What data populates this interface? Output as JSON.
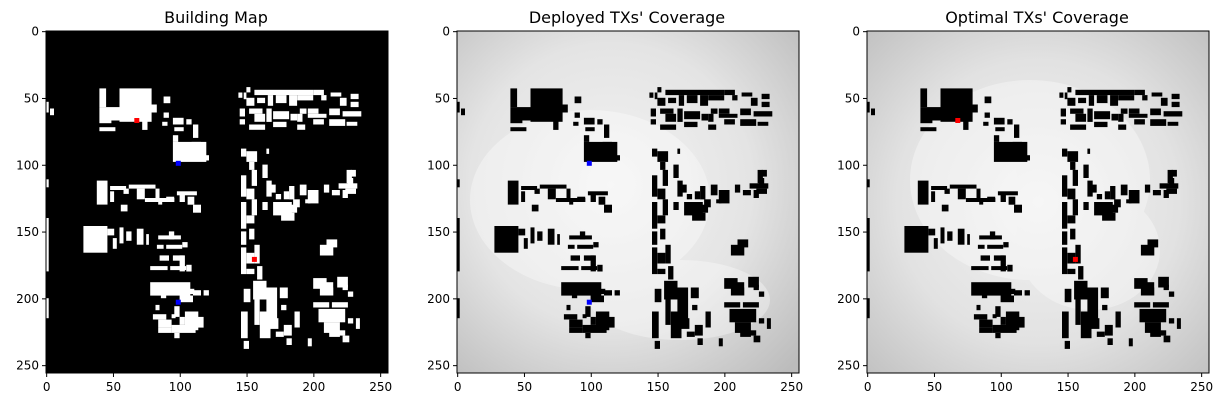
{
  "colors": {
    "building_white": "#ffffff",
    "background_black": "#000000",
    "tx_red": "#ff0000",
    "tx_blue": "#0000ff",
    "coverage_high": "#f3f3f3",
    "coverage_low": "#b8b8b8"
  },
  "chart_data": [
    {
      "type": "heatmap",
      "title": "Building Map",
      "xlim": [
        0,
        255
      ],
      "ylim": [
        255,
        0
      ],
      "x_ticks": [
        "0",
        "50",
        "100",
        "150",
        "200",
        "250"
      ],
      "y_ticks": [
        "0",
        "50",
        "100",
        "150",
        "200",
        "250"
      ],
      "buildings_rendered_as": "white",
      "markers": [
        {
          "x": 68,
          "y": 67,
          "color": "red"
        },
        {
          "x": 99,
          "y": 99,
          "color": "blue"
        },
        {
          "x": 156,
          "y": 171,
          "color": "red"
        },
        {
          "x": 99,
          "y": 203,
          "color": "blue"
        }
      ]
    },
    {
      "type": "heatmap",
      "title": "Deployed TXs' Coverage",
      "xlim": [
        0,
        255
      ],
      "ylim": [
        255,
        0
      ],
      "x_ticks": [
        "0",
        "50",
        "100",
        "150",
        "200",
        "250"
      ],
      "y_ticks": [
        "0",
        "50",
        "100",
        "150",
        "200",
        "250"
      ],
      "buildings_rendered_as": "black",
      "markers": [
        {
          "x": 99,
          "y": 99,
          "color": "blue"
        },
        {
          "x": 99,
          "y": 203,
          "color": "blue"
        }
      ]
    },
    {
      "type": "heatmap",
      "title": "Optimal TXs' Coverage",
      "xlim": [
        0,
        255
      ],
      "ylim": [
        255,
        0
      ],
      "x_ticks": [
        "0",
        "50",
        "100",
        "150",
        "200",
        "250"
      ],
      "y_ticks": [
        "0",
        "50",
        "100",
        "150",
        "200",
        "250"
      ],
      "buildings_rendered_as": "black",
      "markers": [
        {
          "x": 68,
          "y": 67,
          "color": "red"
        },
        {
          "x": 156,
          "y": 171,
          "color": "red"
        }
      ]
    }
  ]
}
